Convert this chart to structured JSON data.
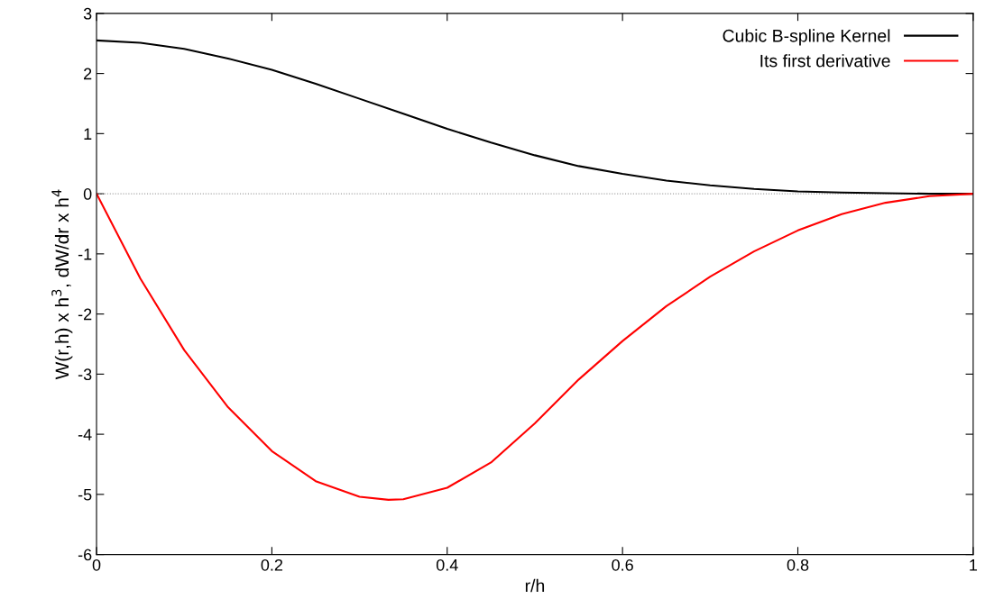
{
  "chart_data": {
    "type": "line",
    "xlabel": "r/h",
    "ylabel": "W(r,h) x h$^{3}$, dW/dr x h$^{4}$",
    "xlim": [
      0,
      1
    ],
    "ylim": [
      -6,
      3
    ],
    "xticks": [
      0,
      0.2,
      0.4,
      0.6,
      0.8,
      1
    ],
    "yticks": [
      -6,
      -5,
      -4,
      -3,
      -2,
      -1,
      0,
      1,
      2,
      3
    ],
    "grid": false,
    "legend": "top right",
    "marker": "none",
    "line_style": "solid",
    "ref_lines": [
      {
        "axis": "y",
        "value": 0,
        "color": "#a0a0a0",
        "line_style": "dotted"
      }
    ],
    "series": [
      {
        "name": "Cubic B-spline Kernel",
        "color": "#000000",
        "x": [
          0,
          0.05,
          0.1,
          0.15,
          0.2,
          0.25,
          0.3,
          0.35,
          0.4,
          0.45,
          0.5,
          0.55,
          0.6,
          0.65,
          0.7,
          0.75,
          0.8,
          0.85,
          0.9,
          0.95,
          1
        ],
        "values": [
          2.55,
          2.51,
          2.41,
          2.25,
          2.06,
          1.83,
          1.58,
          1.33,
          1.08,
          0.85,
          0.64,
          0.46,
          0.33,
          0.22,
          0.14,
          0.08,
          0.04,
          0.02,
          0.01,
          0,
          0
        ]
      },
      {
        "name": "Its first derivative",
        "color": "#ff0000",
        "x": [
          0,
          0.05,
          0.1,
          0.15,
          0.2,
          0.25,
          0.3,
          0.333,
          0.35,
          0.4,
          0.45,
          0.5,
          0.55,
          0.6,
          0.65,
          0.7,
          0.75,
          0.8,
          0.85,
          0.9,
          0.95,
          1
        ],
        "values": [
          0,
          -1.41,
          -2.6,
          -3.55,
          -4.28,
          -4.78,
          -5.04,
          -5.09,
          -5.08,
          -4.89,
          -4.47,
          -3.82,
          -3.09,
          -2.45,
          -1.87,
          -1.38,
          -0.96,
          -0.61,
          -0.34,
          -0.15,
          -0.04,
          0
        ]
      }
    ]
  }
}
